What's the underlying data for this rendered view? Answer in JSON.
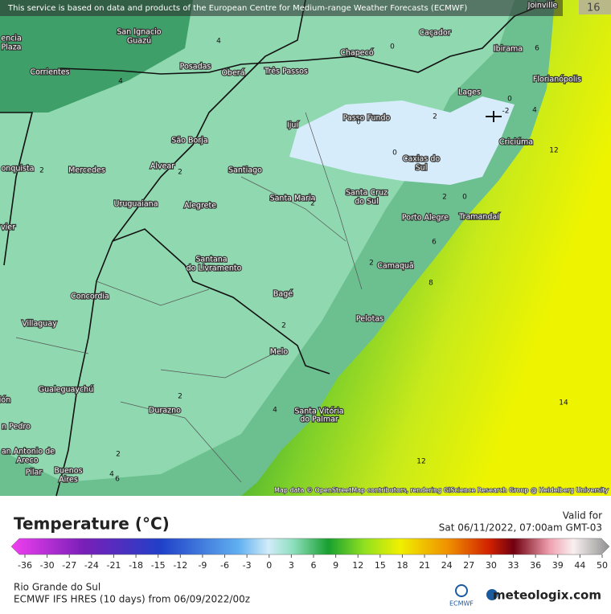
{
  "notice": "This service is based on data and products of the European Centre for Medium-range Weather Forecasts (ECMWF)",
  "map": {
    "corner_label": "16",
    "cities": [
      "San Ignacio",
      "Guazú",
      "encia",
      "Plaza",
      "Posadas",
      "Oberá",
      "Três Passos",
      "Chapecó",
      "Caçador",
      "Joinville",
      "Ibirama",
      "Florianópolis",
      "Lages",
      "Corrientes",
      "Passo Fundo",
      "Ijuí",
      "São Borja",
      "Criciúma",
      "Caxias do",
      "Sul",
      "onquista",
      "Mercedes",
      "Alvear",
      "Santiago",
      "Santa Maria",
      "Santa Cruz",
      "do Sul",
      "Uruguaiana",
      "Alegrete",
      "Porto Alegre",
      "Tramandaí",
      "vier",
      "Santana",
      "do Livramento",
      "Camaquã",
      "Concordia",
      "Bagé",
      "Villaguay",
      "Pelotas",
      "Melo",
      "Gualeguaychú",
      "ión",
      "Santa Vitória",
      "do Palmar",
      "Durazno",
      "n Pedro",
      "an Antonio de",
      "Areco",
      "Pilar",
      "Buenos",
      "Aires"
    ],
    "contour_labels": [
      "4",
      "4",
      "0",
      "6",
      "0",
      "-2",
      "4",
      "2",
      "0",
      "2",
      "2",
      "0",
      "2",
      "0",
      "12",
      "2",
      "2",
      "8",
      "2",
      "6",
      "14",
      "2",
      "4",
      "2",
      "12",
      "4",
      "6"
    ],
    "attribution": "Map data © OpenStreetMap contributors, rendering GIScience Research Group @ Heidelberg University"
  },
  "legend": {
    "title": "Temperature (°C)",
    "ticks": [
      -36,
      -30,
      -27,
      -24,
      -21,
      -18,
      -15,
      -12,
      -9,
      -6,
      -3,
      0,
      3,
      6,
      9,
      12,
      15,
      18,
      21,
      24,
      27,
      30,
      33,
      36,
      39,
      44,
      50
    ]
  },
  "valid": {
    "label": "Valid for",
    "time": "Sat 06/11/2022, 07:00am GMT-03"
  },
  "footer": {
    "region": "Rio Grande do Sul",
    "model": "ECMWF IFS HRES (10 days) from 06/09/2022/00z",
    "ecmwf": "ECMWF",
    "brand": "meteologix.com"
  }
}
